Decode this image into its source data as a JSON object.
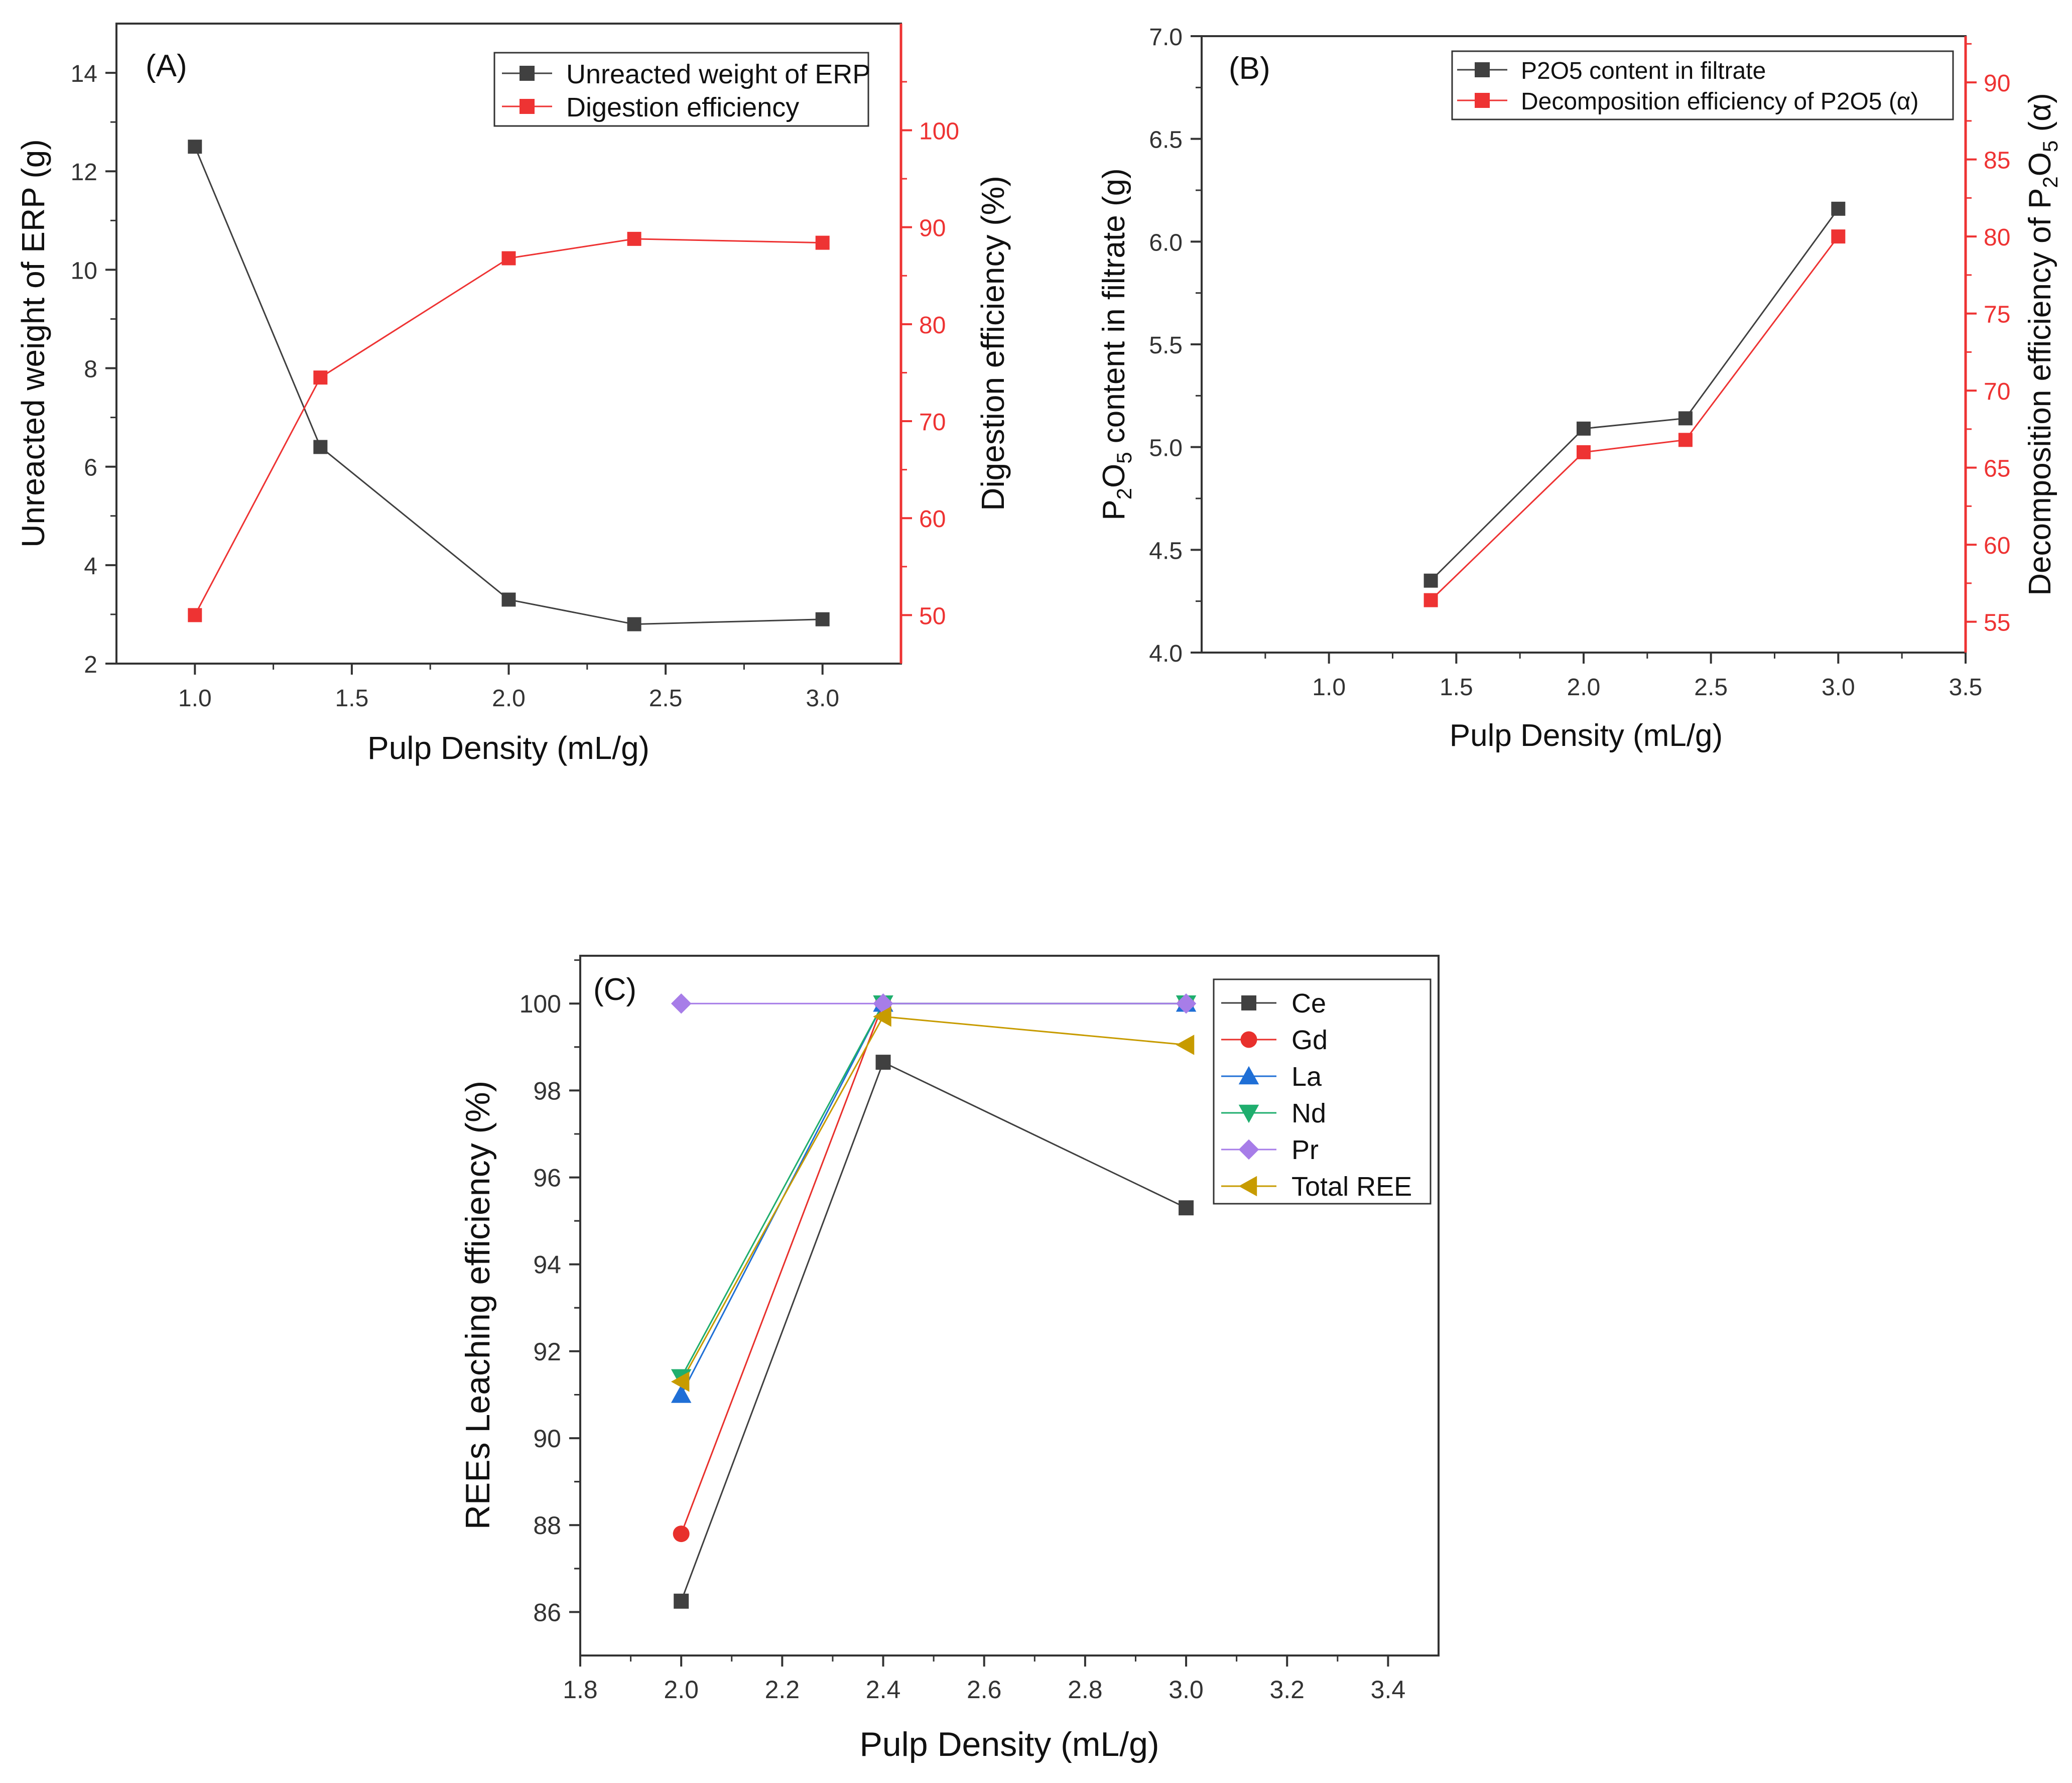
{
  "chart_data": [
    {
      "panel_label": "(A)",
      "type": "line",
      "xlabel": "Pulp Density (mL/g)",
      "ylabel_left": "Unreacted weight of ERP (g)",
      "ylabel_right": "Digestion efficiency (%)",
      "xlim": [
        0.75,
        3.25
      ],
      "ylim_left": [
        2,
        15
      ],
      "ylim_right": [
        45,
        111
      ],
      "xticks": [
        "1.0",
        "1.5",
        "2.0",
        "2.5",
        "3.0"
      ],
      "xtick_values": [
        1.0,
        1.5,
        2.0,
        2.5,
        3.0
      ],
      "yticks_left": [
        "2",
        "4",
        "6",
        "8",
        "10",
        "12",
        "14"
      ],
      "ytick_values_left": [
        2,
        4,
        6,
        8,
        10,
        12,
        14
      ],
      "yticks_right": [
        "50",
        "60",
        "70",
        "80",
        "90",
        "100"
      ],
      "ytick_values_right": [
        50,
        60,
        70,
        80,
        90,
        100
      ],
      "legend_position": "top-right",
      "series": [
        {
          "name": "Unreacted weight of ERP",
          "axis": "left",
          "color": "#404040",
          "marker": "square",
          "x": [
            1.0,
            1.4,
            2.0,
            2.4,
            3.0
          ],
          "values": [
            12.5,
            6.4,
            3.3,
            2.8,
            2.9
          ]
        },
        {
          "name": "Digestion efficiency",
          "axis": "right",
          "color": "#ee3333",
          "marker": "square",
          "x": [
            1.0,
            1.4,
            2.0,
            2.4,
            3.0
          ],
          "values": [
            50.0,
            74.5,
            86.8,
            88.8,
            88.4
          ]
        }
      ]
    },
    {
      "panel_label": "(B)",
      "type": "line",
      "xlabel": "Pulp Density (mL/g)",
      "ylabel_left": {
        "p1": "P",
        "s1": "2",
        "p2": "O",
        "s2": "5",
        "p3": " content in filtrate (g)"
      },
      "ylabel_right": {
        "p1": "Decomposition efficiency of P",
        "s1": "2",
        "p2": "O",
        "s2": "5",
        "p3": " (α)"
      },
      "xlim": [
        0.5,
        3.5
      ],
      "ylim_left": [
        4.0,
        7.0
      ],
      "ylim_right": [
        53,
        93
      ],
      "xticks": [
        "1.0",
        "1.5",
        "2.0",
        "2.5",
        "3.0",
        "3.5"
      ],
      "xtick_values": [
        1.0,
        1.5,
        2.0,
        2.5,
        3.0,
        3.5
      ],
      "yticks_left": [
        "4.0",
        "4.5",
        "5.0",
        "5.5",
        "6.0",
        "6.5",
        "7.0"
      ],
      "ytick_values_left": [
        4.0,
        4.5,
        5.0,
        5.5,
        6.0,
        6.5,
        7.0
      ],
      "yticks_right": [
        "55",
        "60",
        "65",
        "70",
        "75",
        "80",
        "85",
        "90"
      ],
      "ytick_values_right": [
        55,
        60,
        65,
        70,
        75,
        80,
        85,
        90
      ],
      "legend_position": "top-right",
      "series": [
        {
          "name": "P2O5 content in filtrate",
          "axis": "left",
          "color": "#404040",
          "marker": "square",
          "x": [
            1.4,
            2.0,
            2.4,
            3.0
          ],
          "values": [
            4.35,
            5.09,
            5.14,
            6.16
          ]
        },
        {
          "name": "Decomposition efficiency of P2O5 (α)",
          "axis": "right",
          "color": "#ee3333",
          "marker": "square",
          "x": [
            1.4,
            2.0,
            2.4,
            3.0
          ],
          "values": [
            56.4,
            66.0,
            66.8,
            80.0
          ]
        }
      ]
    },
    {
      "panel_label": "(C)",
      "type": "line",
      "xlabel": "Pulp Density (mL/g)",
      "ylabel": "REEs Leaching efficiency (%)",
      "xlim": [
        1.8,
        3.5
      ],
      "ylim": [
        85,
        101.1
      ],
      "xticks": [
        "1.8",
        "2.0",
        "2.2",
        "2.4",
        "2.6",
        "2.8",
        "3.0",
        "3.2",
        "3.4"
      ],
      "xtick_values": [
        1.8,
        2.0,
        2.2,
        2.4,
        2.6,
        2.8,
        3.0,
        3.2,
        3.4
      ],
      "yticks": [
        "86",
        "88",
        "90",
        "92",
        "94",
        "96",
        "98",
        "100"
      ],
      "ytick_values": [
        86,
        88,
        90,
        92,
        94,
        96,
        98,
        100
      ],
      "legend_position": "top-right",
      "series": [
        {
          "name": "Ce",
          "color": "#404040",
          "marker": "square",
          "x": [
            2.0,
            2.4,
            3.0
          ],
          "values": [
            86.25,
            98.65,
            95.3
          ]
        },
        {
          "name": "Gd",
          "color": "#e8302c",
          "marker": "circle",
          "x": [
            2.0,
            2.4,
            3.0
          ],
          "values": [
            87.8,
            100.0,
            100.0
          ]
        },
        {
          "name": "La",
          "color": "#1f6fd6",
          "marker": "triangle-up",
          "x": [
            2.0,
            2.4,
            3.0
          ],
          "values": [
            91.0,
            100.0,
            100.0
          ]
        },
        {
          "name": "Nd",
          "color": "#1fae6e",
          "marker": "triangle-down",
          "x": [
            2.0,
            2.4,
            3.0
          ],
          "values": [
            91.4,
            100.0,
            100.0
          ]
        },
        {
          "name": "Pr",
          "color": "#a77de8",
          "marker": "diamond",
          "x": [
            2.0,
            2.4,
            3.0
          ],
          "values": [
            100.0,
            100.0,
            100.0
          ]
        },
        {
          "name": "Total REE",
          "color": "#c79b00",
          "marker": "triangle-left",
          "x": [
            2.0,
            2.4,
            3.0
          ],
          "values": [
            91.3,
            99.7,
            99.05
          ]
        }
      ]
    }
  ]
}
